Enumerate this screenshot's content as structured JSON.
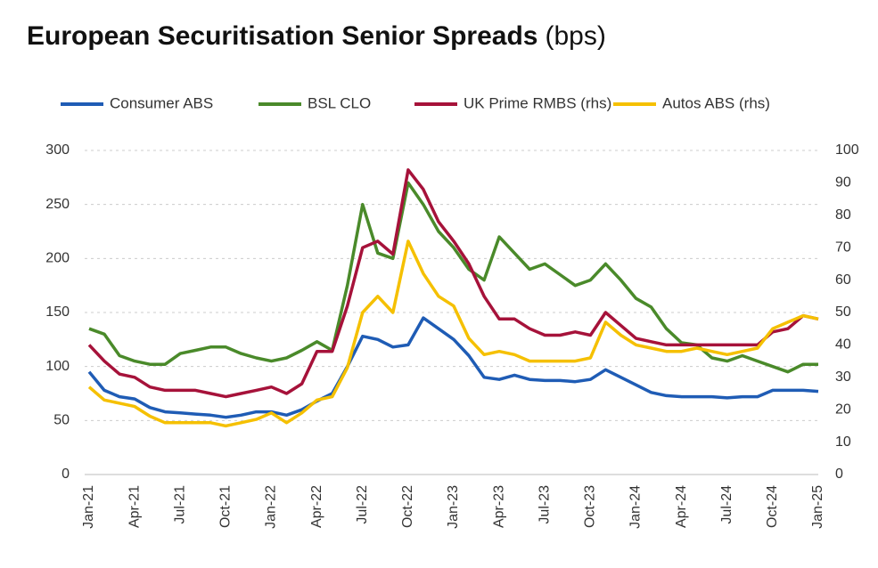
{
  "chart_data": {
    "type": "line",
    "title": "European Securitisation Senior Spreads",
    "title_suffix": "(bps)",
    "categories": [
      "Jan-21",
      null,
      null,
      "Apr-21",
      null,
      null,
      "Jul-21",
      null,
      null,
      "Oct-21",
      null,
      null,
      "Jan-22",
      null,
      null,
      "Apr-22",
      null,
      null,
      "Jul-22",
      null,
      null,
      "Oct-22",
      null,
      null,
      "Jan-23",
      null,
      null,
      "Apr-23",
      null,
      null,
      "Jul-23",
      null,
      null,
      "Oct-23",
      null,
      null,
      "Jan-24",
      null,
      null,
      "Apr-24",
      null,
      null,
      "Jul-24",
      null,
      null,
      "Oct-24",
      null,
      null,
      "Jan-25"
    ],
    "series": [
      {
        "name": "Consumer ABS",
        "color": "#1f5cb5",
        "values": [
          95,
          78,
          72,
          70,
          62,
          58,
          57,
          56,
          55,
          53,
          55,
          58,
          58,
          55,
          60,
          68,
          75,
          100,
          128,
          125,
          118,
          120,
          145,
          135,
          125,
          110,
          90,
          88,
          92,
          88,
          87,
          87,
          86,
          88,
          97,
          90,
          83,
          76,
          73,
          72,
          72,
          72,
          71,
          72,
          72,
          78,
          78,
          78,
          77
        ]
      },
      {
        "name": "BSL CLO",
        "color": "#4a8a2a",
        "values": [
          135,
          130,
          110,
          105,
          102,
          102,
          112,
          115,
          118,
          118,
          112,
          108,
          105,
          108,
          115,
          123,
          115,
          175,
          250,
          205,
          200,
          270,
          250,
          225,
          210,
          190,
          180,
          220,
          205,
          190,
          195,
          185,
          175,
          180,
          195,
          180,
          163,
          155,
          135,
          122,
          120,
          108,
          105,
          110,
          105,
          100,
          95,
          102,
          102
        ]
      },
      {
        "name": "UK Prime RMBS (rhs)",
        "color": "#a6123a",
        "axis": "y2",
        "values": [
          40,
          35,
          31,
          30,
          27,
          26,
          26,
          26,
          25,
          24,
          25,
          26,
          27,
          25,
          28,
          38,
          38,
          52,
          70,
          72,
          68,
          94,
          88,
          78,
          72,
          65,
          55,
          48,
          48,
          45,
          43,
          43,
          44,
          43,
          50,
          46,
          42,
          41,
          40,
          40,
          40,
          40,
          40,
          40,
          40,
          44,
          45,
          49,
          48
        ]
      },
      {
        "name": "Autos ABS (rhs)",
        "color": "#f5c000",
        "axis": "y2",
        "values": [
          27,
          23,
          22,
          21,
          18,
          16,
          16,
          16,
          16,
          15,
          16,
          17,
          19,
          16,
          19,
          23,
          24,
          33,
          50,
          55,
          50,
          72,
          62,
          55,
          52,
          42,
          37,
          38,
          37,
          35,
          35,
          35,
          35,
          36,
          47,
          43,
          40,
          39,
          38,
          38,
          39,
          38,
          37,
          38,
          39,
          45,
          47,
          49,
          48
        ]
      }
    ],
    "ylim": [
      0,
      300
    ],
    "yticks": [
      0,
      50,
      100,
      150,
      200,
      250,
      300
    ],
    "y2lim": [
      0,
      100
    ],
    "y2ticks": [
      0,
      10,
      20,
      30,
      40,
      50,
      60,
      70,
      80,
      90,
      100
    ],
    "grid": true,
    "legend": "top"
  }
}
